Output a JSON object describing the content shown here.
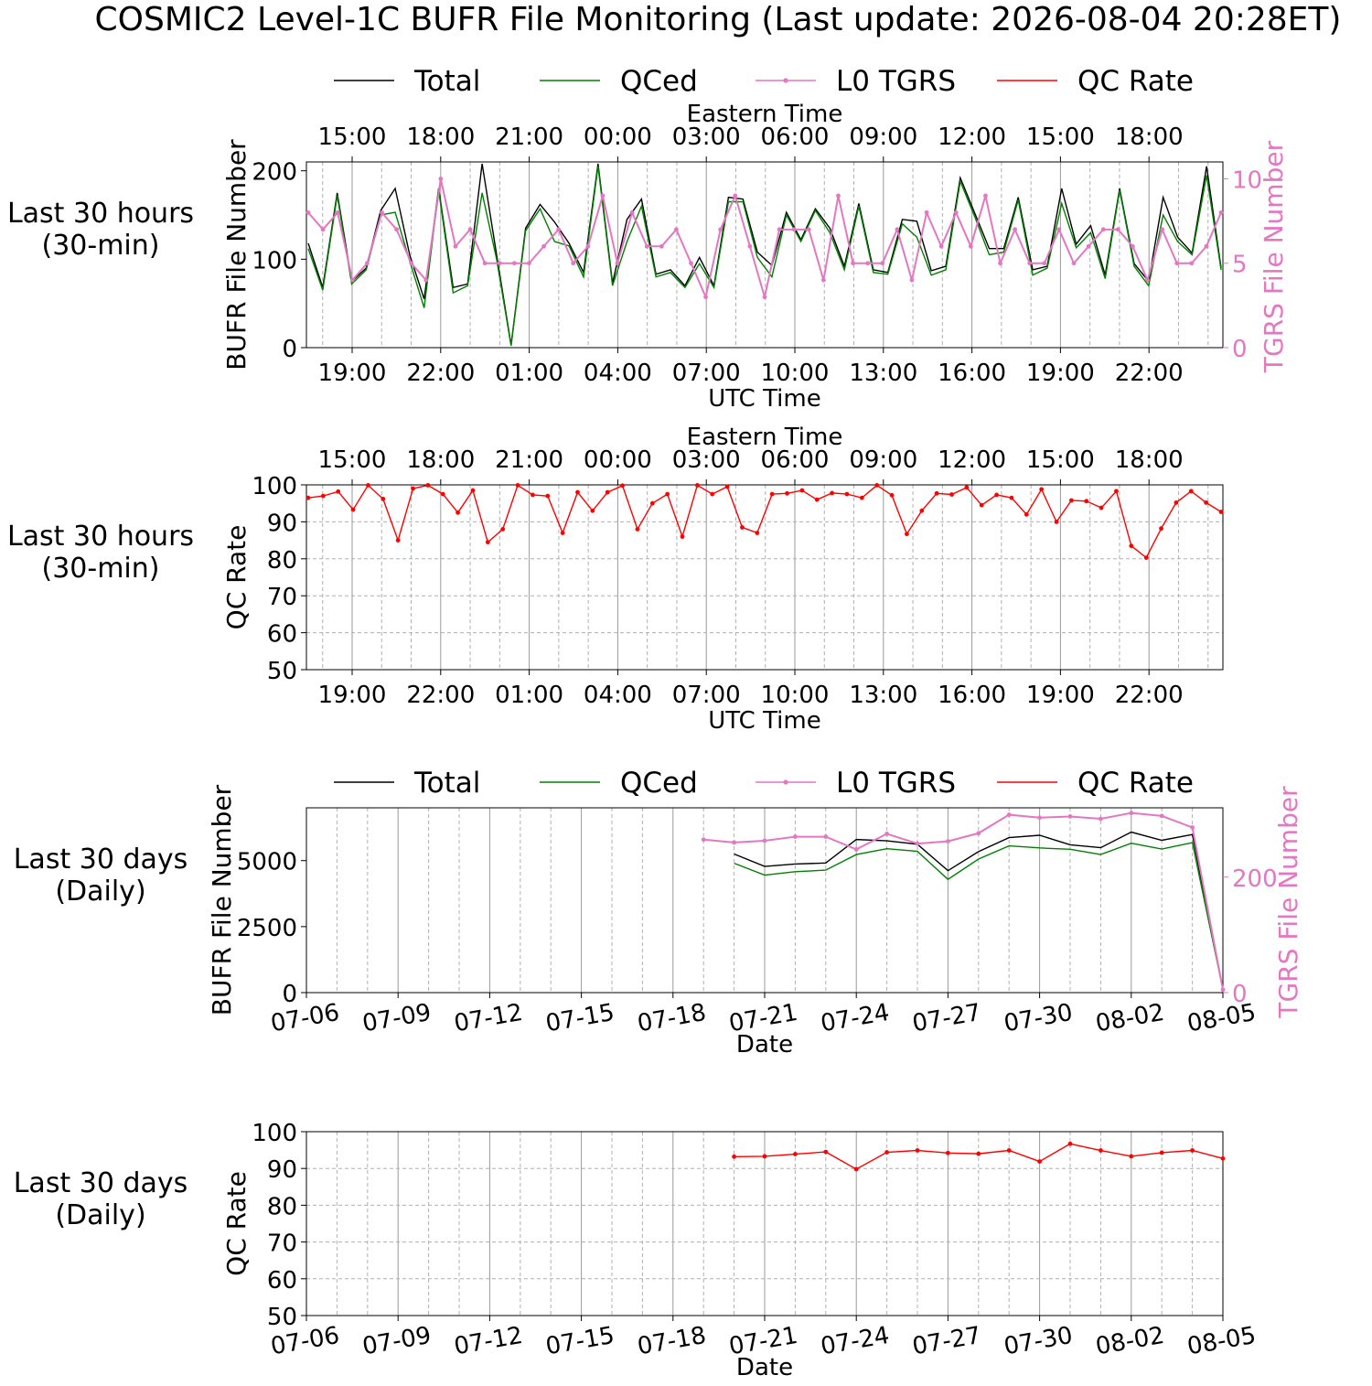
{
  "title": "COSMIC2 Level-1C BUFR File Monitoring (Last update: 2026-08-04 20:28ET)",
  "colors": {
    "total": "#000000",
    "qced": "#008000",
    "tgrs": "#e377c2",
    "qc_rate": "#ff0000",
    "grid": "#b0b0b0"
  },
  "legend": [
    "Total",
    "QCed",
    "L0 TGRS",
    "QC Rate"
  ],
  "chart_data": [
    {
      "type": "line",
      "row_label": [
        "Last 30 hours",
        "(30-min)"
      ],
      "xlabel": "UTC Time",
      "top_xlabel": "Eastern Time",
      "ylabel": "BUFR File Number",
      "y2label": "TGRS File Number",
      "ylim": [
        0,
        210
      ],
      "y2lim": [
        0,
        11
      ],
      "yticks": [
        0,
        100,
        200
      ],
      "y2ticks": [
        0,
        5,
        10
      ],
      "x_ticklabels": [
        "19:00",
        "22:00",
        "01:00",
        "04:00",
        "07:00",
        "10:00",
        "13:00",
        "16:00",
        "19:00",
        "22:00"
      ],
      "top_ticklabels": [
        "15:00",
        "18:00",
        "21:00",
        "00:00",
        "03:00",
        "06:00",
        "09:00",
        "12:00",
        "15:00",
        "18:00"
      ],
      "legend_position": "top",
      "series": [
        {
          "name": "Total",
          "values": [
            118,
            68,
            175,
            75,
            90,
            155,
            180,
            105,
            55,
            180,
            68,
            72,
            208,
            105,
            3,
            135,
            162,
            142,
            118,
            85,
            208,
            73,
            145,
            168,
            83,
            88,
            70,
            102,
            70,
            170,
            168,
            108,
            93,
            153,
            122,
            157,
            135,
            92,
            163,
            88,
            85,
            145,
            143,
            87,
            92,
            192,
            152,
            112,
            112,
            170,
            88,
            92,
            180,
            117,
            138,
            82,
            180,
            95,
            75,
            170,
            125,
            107,
            205,
            90
          ]
        },
        {
          "name": "QCed",
          "values": [
            112,
            65,
            172,
            72,
            88,
            150,
            153,
            98,
            45,
            178,
            62,
            70,
            175,
            100,
            2,
            132,
            157,
            120,
            115,
            80,
            205,
            70,
            120,
            160,
            80,
            85,
            68,
            95,
            68,
            165,
            165,
            102,
            80,
            150,
            120,
            155,
            130,
            88,
            160,
            85,
            83,
            140,
            125,
            82,
            88,
            188,
            148,
            105,
            108,
            167,
            82,
            90,
            163,
            113,
            130,
            78,
            178,
            92,
            70,
            150,
            120,
            105,
            195,
            88
          ]
        },
        {
          "name": "L0 TGRS",
          "values": [
            8,
            7,
            8,
            4,
            5,
            8,
            7,
            5,
            4,
            10,
            6,
            7,
            5,
            5,
            5,
            5,
            6,
            7,
            5,
            6,
            9,
            5,
            8,
            6,
            6,
            7,
            5,
            3,
            7,
            9,
            6,
            3,
            7,
            7,
            7,
            4,
            9,
            5,
            5,
            5,
            7,
            4,
            8,
            6,
            8,
            6,
            9,
            5,
            7,
            5,
            5,
            7,
            5,
            6,
            7,
            7,
            6,
            4,
            7,
            5,
            5,
            6,
            8
          ]
        }
      ]
    },
    {
      "type": "line",
      "row_label": [
        "Last 30 hours",
        "(30-min)"
      ],
      "xlabel": "UTC Time",
      "top_xlabel": "Eastern Time",
      "ylabel": "QC Rate",
      "ylim": [
        50,
        100
      ],
      "yticks": [
        50,
        60,
        70,
        80,
        90,
        100
      ],
      "x_ticklabels": [
        "19:00",
        "22:00",
        "01:00",
        "04:00",
        "07:00",
        "10:00",
        "13:00",
        "16:00",
        "19:00",
        "22:00"
      ],
      "top_ticklabels": [
        "15:00",
        "18:00",
        "21:00",
        "00:00",
        "03:00",
        "06:00",
        "09:00",
        "12:00",
        "15:00",
        "18:00"
      ],
      "series": [
        {
          "name": "QC Rate",
          "values": [
            96.5,
            97,
            98.2,
            93.3,
            99.9,
            96.2,
            85,
            99,
            99.9,
            97.5,
            92.5,
            98.5,
            84.5,
            88,
            99.9,
            97.3,
            97,
            87,
            98,
            93,
            98,
            99.8,
            88,
            95,
            97.5,
            86,
            99.9,
            97.5,
            99.5,
            88.5,
            87,
            97.5,
            97.7,
            98.5,
            96,
            97.8,
            97.5,
            96.5,
            99.9,
            97.2,
            86.7,
            93,
            97.7,
            97.4,
            99.3,
            94.5,
            97.3,
            96.5,
            92,
            98.8,
            90,
            95.8,
            95.6,
            93.8,
            98.3,
            83.5,
            80.3,
            88.2,
            95.2,
            98.3,
            95.2,
            92.7
          ]
        }
      ]
    },
    {
      "type": "line",
      "row_label": [
        "Last 30 days",
        "(Daily)"
      ],
      "xlabel": "Date",
      "ylabel": "BUFR File Number",
      "y2label": "TGRS File Number",
      "ylim": [
        0,
        7000
      ],
      "y2lim": [
        0,
        320
      ],
      "yticks": [
        0,
        2500,
        5000
      ],
      "y2ticks": [
        0,
        200
      ],
      "x": [
        "07-06",
        "07-07",
        "07-08",
        "07-09",
        "07-10",
        "07-11",
        "07-12",
        "07-13",
        "07-14",
        "07-15",
        "07-16",
        "07-17",
        "07-18",
        "07-19",
        "07-20",
        "07-21",
        "07-22",
        "07-23",
        "07-24",
        "07-25",
        "07-26",
        "07-27",
        "07-28",
        "07-29",
        "07-30",
        "07-31",
        "08-01",
        "08-02",
        "08-03",
        "08-04",
        "08-05"
      ],
      "x_ticklabels": [
        "07-06",
        "07-09",
        "07-12",
        "07-15",
        "07-18",
        "07-21",
        "07-24",
        "07-27",
        "07-30",
        "08-02",
        "08-05"
      ],
      "legend_position": "top",
      "series": [
        {
          "name": "Total",
          "values": [
            null,
            null,
            null,
            null,
            null,
            null,
            null,
            null,
            null,
            null,
            null,
            null,
            null,
            null,
            5250,
            4780,
            4870,
            4910,
            5800,
            5750,
            5620,
            4620,
            5340,
            5870,
            5960,
            5600,
            5490,
            6080,
            5770,
            5990,
            130
          ]
        },
        {
          "name": "QCed",
          "values": [
            null,
            null,
            null,
            null,
            null,
            null,
            null,
            null,
            null,
            null,
            null,
            null,
            null,
            null,
            4900,
            4450,
            4580,
            4640,
            5230,
            5450,
            5350,
            4290,
            5060,
            5560,
            5480,
            5430,
            5230,
            5660,
            5440,
            5680,
            120
          ]
        },
        {
          "name": "L0 TGRS",
          "values": [
            null,
            null,
            null,
            null,
            null,
            null,
            null,
            null,
            null,
            null,
            null,
            null,
            null,
            265,
            260,
            263,
            270,
            270,
            248,
            275,
            258,
            262,
            276,
            308,
            303,
            305,
            301,
            311,
            306,
            286,
            5
          ]
        }
      ]
    },
    {
      "type": "line",
      "row_label": [
        "Last 30 days",
        "(Daily)"
      ],
      "xlabel": "Date",
      "ylabel": "QC Rate",
      "ylim": [
        50,
        100
      ],
      "yticks": [
        50,
        60,
        70,
        80,
        90,
        100
      ],
      "x": [
        "07-06",
        "07-07",
        "07-08",
        "07-09",
        "07-10",
        "07-11",
        "07-12",
        "07-13",
        "07-14",
        "07-15",
        "07-16",
        "07-17",
        "07-18",
        "07-19",
        "07-20",
        "07-21",
        "07-22",
        "07-23",
        "07-24",
        "07-25",
        "07-26",
        "07-27",
        "07-28",
        "07-29",
        "07-30",
        "07-31",
        "08-01",
        "08-02",
        "08-03",
        "08-04",
        "08-05"
      ],
      "x_ticklabels": [
        "07-06",
        "07-09",
        "07-12",
        "07-15",
        "07-18",
        "07-21",
        "07-24",
        "07-27",
        "07-30",
        "08-02",
        "08-05"
      ],
      "series": [
        {
          "name": "QC Rate",
          "values": [
            null,
            null,
            null,
            null,
            null,
            null,
            null,
            null,
            null,
            null,
            null,
            null,
            null,
            null,
            93.2,
            93.3,
            93.9,
            94.5,
            89.8,
            94.4,
            94.9,
            94.2,
            94,
            94.9,
            91.9,
            96.7,
            94.9,
            93.3,
            94.3,
            94.9,
            92.7
          ]
        }
      ]
    }
  ]
}
